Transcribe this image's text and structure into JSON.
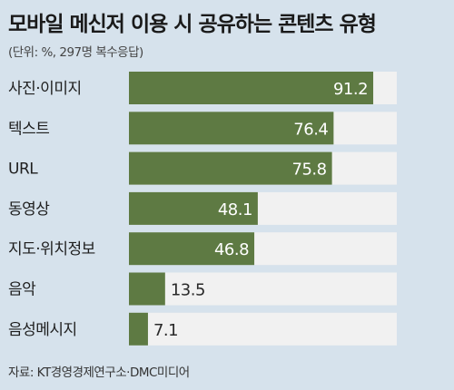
{
  "header": {
    "title": "모바일 메신저 이용 시 공유하는 콘텐츠 유형",
    "subtitle": "(단위: %, 297명 복수응답)"
  },
  "footer": {
    "source": "자료: KT경영경제연구소·DMC미디어"
  },
  "colors": {
    "background": "#d6e2ec",
    "bar": "#5e7a43",
    "track": "#f1f1f1"
  },
  "chart_data": {
    "type": "bar",
    "orientation": "horizontal",
    "title": "모바일 메신저 이용 시 공유하는 콘텐츠 유형",
    "subtitle": "(단위: %, 297명 복수응답)",
    "categories": [
      "사진·이미지",
      "텍스트",
      "URL",
      "동영상",
      "지도·위치정보",
      "음악",
      "음성메시지"
    ],
    "values": [
      91.2,
      76.4,
      75.8,
      48.1,
      46.8,
      13.5,
      7.1
    ],
    "value_labels": [
      "91.2",
      "76.4",
      "75.8",
      "48.1",
      "46.8",
      "13.5",
      "7.1"
    ],
    "xlim": [
      0,
      100
    ],
    "grid": false,
    "legend": "none"
  }
}
